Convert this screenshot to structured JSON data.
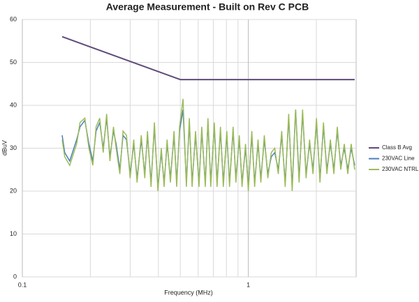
{
  "chart_data": {
    "type": "line",
    "title": "Average Measurement - Built on Rev C PCB",
    "x_label": "Frequency (MHz)",
    "y_label": "dBuV",
    "x": [
      0.15,
      0.154,
      0.162,
      0.174,
      0.18,
      0.189,
      0.197,
      0.205,
      0.212,
      0.22,
      0.228,
      0.236,
      0.244,
      0.253,
      0.26,
      0.27,
      0.279,
      0.289,
      0.3,
      0.311,
      0.322,
      0.336,
      0.348,
      0.358,
      0.371,
      0.384,
      0.398,
      0.412,
      0.424,
      0.437,
      0.452,
      0.469,
      0.482,
      0.496,
      0.514,
      0.532,
      0.548,
      0.564,
      0.584,
      0.605,
      0.622,
      0.645,
      0.663,
      0.682,
      0.707,
      0.727,
      0.753,
      0.775,
      0.803,
      0.826,
      0.856,
      0.881,
      0.912,
      0.938,
      0.972,
      1.0,
      1.036,
      1.066,
      1.104,
      1.136,
      1.177,
      1.22,
      1.264,
      1.309,
      1.357,
      1.405,
      1.456,
      1.509,
      1.563,
      1.619,
      1.677,
      1.738,
      1.801,
      1.866,
      1.933,
      2.003,
      2.075,
      2.15,
      2.227,
      2.307,
      2.39,
      2.476,
      2.566,
      2.658,
      2.754,
      2.853,
      2.956
    ],
    "series": [
      {
        "name": "Class B Avg",
        "color": "#5f4b77",
        "x": [
          0.15,
          0.5,
          2.956
        ],
        "values": [
          56,
          46,
          46
        ]
      },
      {
        "name": "230VAC Line",
        "color": "#4a7ebb",
        "values": [
          33,
          29,
          27,
          32,
          35,
          36.5,
          31,
          27,
          34,
          36,
          30,
          37,
          28,
          34,
          31,
          25,
          33,
          32,
          24,
          31,
          23,
          32,
          24,
          33,
          22,
          35,
          21,
          29,
          22,
          31,
          23,
          33,
          22,
          34,
          39,
          22,
          36,
          22,
          33,
          22,
          34,
          22,
          36,
          22,
          35,
          22,
          34,
          22,
          33,
          22,
          34,
          23,
          32,
          22,
          30,
          21,
          33,
          22,
          31,
          23,
          32,
          24,
          28,
          29,
          25,
          33,
          22,
          37,
          21,
          39,
          23,
          38,
          24,
          31,
          25,
          36,
          23,
          35,
          25,
          31,
          25,
          34,
          26,
          30,
          25,
          30,
          26
        ]
      },
      {
        "name": "230VAC NTRL",
        "color": "#9bbb59",
        "values": [
          32,
          28,
          26,
          31,
          36,
          37,
          30,
          26,
          35,
          37,
          29,
          38,
          27,
          35,
          30,
          24,
          34,
          33,
          23,
          32,
          22,
          33,
          23,
          34,
          21,
          36,
          20,
          30,
          21,
          32,
          22,
          34,
          21,
          35,
          41.5,
          21,
          37,
          21,
          34,
          21,
          35,
          21,
          37,
          21,
          36,
          21,
          35,
          21,
          34,
          21,
          35,
          22,
          33,
          21,
          31,
          20,
          34,
          21,
          32,
          22,
          33,
          23,
          29,
          30,
          24,
          34,
          21,
          38,
          20,
          39,
          22,
          39,
          23,
          32,
          24,
          37,
          22,
          36,
          24,
          32,
          24,
          35,
          25,
          31,
          24,
          31,
          25
        ]
      }
    ],
    "xlim": [
      0.1,
      3
    ],
    "x_log": true,
    "xticks": [
      0.1,
      1
    ],
    "x_minor_grid": [
      0.2,
      0.3,
      0.4,
      0.5,
      0.6,
      0.7,
      0.8,
      0.9,
      2
    ],
    "ylim": [
      0,
      60
    ],
    "yticks": [
      0,
      10,
      20,
      30,
      40,
      50,
      60
    ],
    "grid": true,
    "legend": "right"
  }
}
